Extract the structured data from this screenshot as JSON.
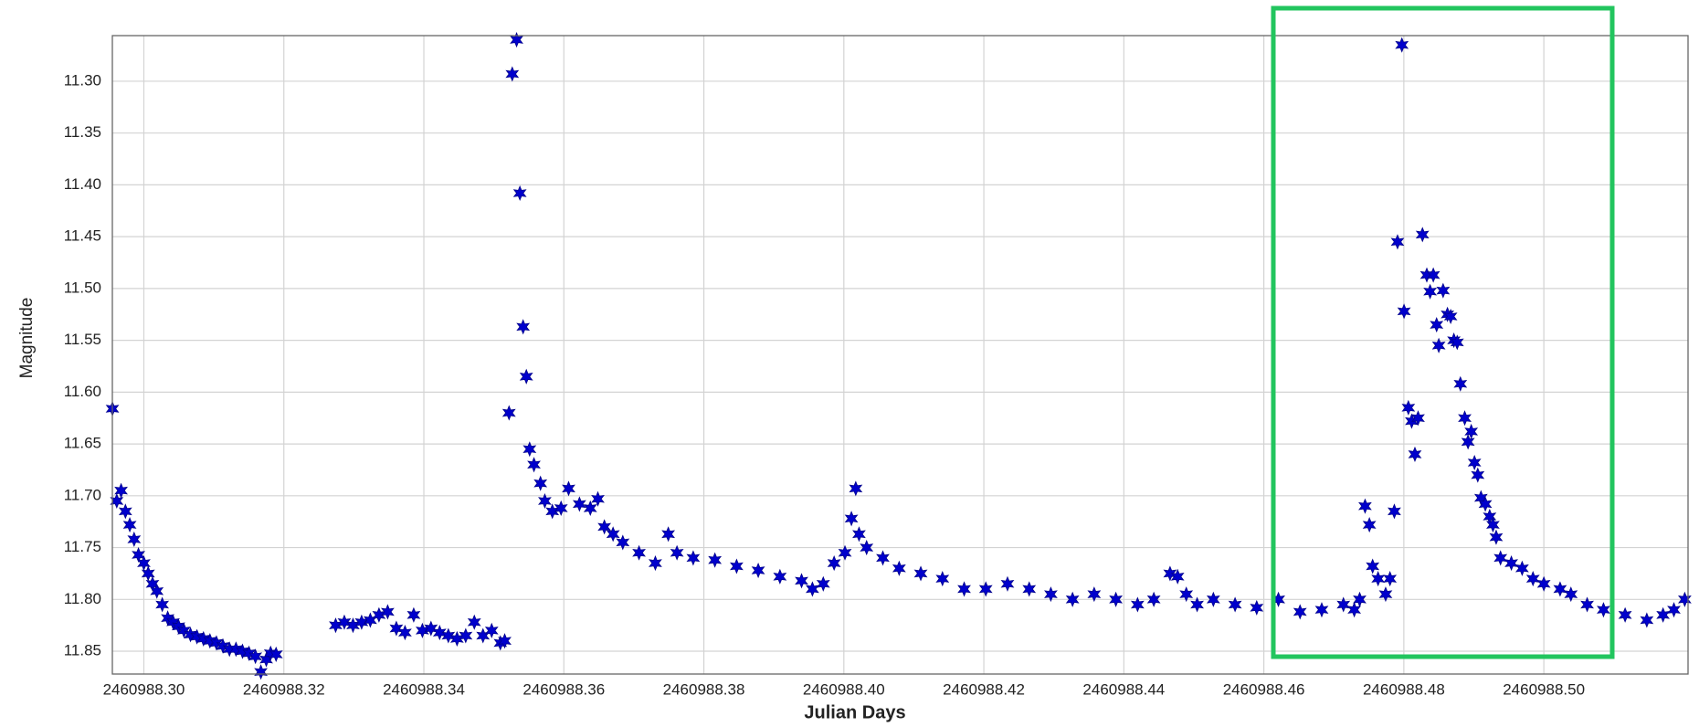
{
  "chart_data": {
    "type": "scatter",
    "x_label": "Julian Days",
    "y_label": "Magnitude",
    "color": "#0000cd",
    "marker": "star",
    "grid": true,
    "xlim": [
      2460988.2955,
      2460988.5206
    ],
    "ylim": [
      11.872,
      11.256
    ],
    "xticks": [
      {
        "value": 2460988.3,
        "label": "2460988.30"
      },
      {
        "value": 2460988.32,
        "label": "2460988.32"
      },
      {
        "value": 2460988.34,
        "label": "2460988.34"
      },
      {
        "value": 2460988.36,
        "label": "2460988.36"
      },
      {
        "value": 2460988.38,
        "label": "2460988.38"
      },
      {
        "value": 2460988.4,
        "label": "2460988.40"
      },
      {
        "value": 2460988.42,
        "label": "2460988.42"
      },
      {
        "value": 2460988.44,
        "label": "2460988.44"
      },
      {
        "value": 2460988.46,
        "label": "2460988.46"
      },
      {
        "value": 2460988.48,
        "label": "2460988.48"
      },
      {
        "value": 2460988.5,
        "label": "2460988.50"
      }
    ],
    "yticks": [
      {
        "value": 11.3,
        "label": "11.30"
      },
      11.35,
      {
        "value": 11.4,
        "label": "11.40"
      },
      11.45,
      {
        "value": 11.5,
        "label": "11.50"
      },
      11.55,
      {
        "value": 11.6,
        "label": "11.60"
      },
      11.65,
      {
        "value": 11.7,
        "label": "11.70"
      },
      11.75,
      {
        "value": 11.8,
        "label": "11.80"
      },
      11.85
    ],
    "x": [
      2460988.29551,
      2460988.29613,
      2460988.29675,
      2460988.29737,
      2460988.29799,
      2460988.29861,
      2460988.29923,
      2460988.3,
      2460988.30062,
      2460988.30124,
      2460988.30186,
      2460988.30263,
      2460988.30341,
      2460988.30418,
      2460988.30495,
      2460988.30573,
      2460988.30666,
      2460988.30759,
      2460988.30852,
      2460988.30944,
      2460988.31037,
      2460988.3113,
      2460988.31223,
      2460988.31316,
      2460988.31409,
      2460988.31502,
      2460988.31594,
      2460988.31672,
      2460988.31749,
      2460988.31811,
      2460988.31889,
      2460988.3274,
      2460988.32864,
      2460988.32988,
      2460988.33111,
      2460988.33235,
      2460988.33359,
      2460988.33483,
      2460988.33607,
      2460988.33731,
      2460988.33855,
      2460988.33979,
      2460988.34102,
      2460988.34226,
      2460988.3435,
      2460988.34474,
      2460988.34598,
      2460988.34721,
      2460988.34845,
      2460988.34969,
      2460988.35093,
      2460988.35155,
      2460988.35217,
      2460988.35263,
      2460988.35325,
      2460988.35372,
      2460988.35418,
      2460988.35464,
      2460988.35511,
      2460988.35573,
      2460988.35666,
      2460988.35728,
      2460988.35836,
      2460988.3596,
      2460988.36068,
      2460988.36223,
      2460988.36378,
      2460988.36486,
      2460988.36579,
      2460988.36703,
      2460988.36842,
      2460988.37074,
      2460988.37307,
      2460988.37492,
      2460988.37616,
      2460988.37848,
      2460988.38158,
      2460988.38468,
      2460988.38777,
      2460988.39087,
      2460988.39396,
      2460988.39551,
      2460988.39706,
      2460988.39861,
      2460988.40016,
      2460988.40108,
      2460988.4017,
      2460988.40217,
      2460988.40325,
      2460988.40557,
      2460988.4079,
      2460988.41099,
      2460988.41409,
      2460988.41719,
      2460988.42028,
      2460988.42338,
      2460988.42648,
      2460988.42957,
      2460988.43267,
      2460988.43576,
      2460988.43886,
      2460988.44196,
      2460988.44428,
      2460988.4466,
      2460988.44768,
      2460988.44892,
      2460988.45047,
      2460988.45279,
      2460988.45589,
      2460988.45898,
      2460988.46208,
      2460988.46517,
      2460988.46827,
      2460988.47137,
      2460988.47292,
      2460988.47369,
      2460988.47446,
      2460988.47508,
      2460988.47554,
      2460988.47632,
      2460988.4774,
      2460988.47802,
      2460988.47864,
      2460988.4791,
      2460988.47972,
      2460988.48003,
      2460988.48065,
      2460988.48112,
      2460988.48158,
      2460988.48204,
      2460988.48266,
      2460988.48328,
      2460988.48375,
      2460988.48421,
      2460988.48468,
      2460988.48499,
      2460988.48561,
      2460988.48623,
      2460988.48669,
      2460988.48715,
      2460988.48762,
      2460988.48808,
      2460988.4887,
      2460988.48917,
      2460988.48963,
      2460988.49009,
      2460988.49056,
      2460988.49102,
      2460988.49164,
      2460988.49226,
      2460988.49273,
      2460988.49319,
      2460988.49381,
      2460988.49536,
      2460988.4969,
      2460988.49845,
      2460988.5,
      2460988.50232,
      2460988.50387,
      2460988.50619,
      2460988.50852,
      2460988.51161,
      2460988.51471,
      2460988.51703,
      2460988.51858,
      2460988.52013
    ],
    "values": [
      11.616,
      11.705,
      11.695,
      11.715,
      11.728,
      11.742,
      11.757,
      11.765,
      11.775,
      11.785,
      11.792,
      11.805,
      11.818,
      11.822,
      11.826,
      11.83,
      11.834,
      11.836,
      11.838,
      11.84,
      11.842,
      11.845,
      11.848,
      11.848,
      11.85,
      11.852,
      11.855,
      11.87,
      11.858,
      11.852,
      11.853,
      11.825,
      11.822,
      11.825,
      11.822,
      11.82,
      11.815,
      11.812,
      11.828,
      11.832,
      11.815,
      11.83,
      11.828,
      11.832,
      11.835,
      11.838,
      11.835,
      11.822,
      11.835,
      11.83,
      11.842,
      11.84,
      11.62,
      11.293,
      11.26,
      11.408,
      11.537,
      11.585,
      11.655,
      11.67,
      11.688,
      11.705,
      11.715,
      11.712,
      11.693,
      11.708,
      11.712,
      11.703,
      11.73,
      11.737,
      11.745,
      11.755,
      11.765,
      11.737,
      11.755,
      11.76,
      11.762,
      11.768,
      11.772,
      11.778,
      11.782,
      11.79,
      11.785,
      11.765,
      11.755,
      11.722,
      11.693,
      11.737,
      11.75,
      11.76,
      11.77,
      11.775,
      11.78,
      11.79,
      11.79,
      11.785,
      11.79,
      11.795,
      11.8,
      11.795,
      11.8,
      11.805,
      11.8,
      11.775,
      11.778,
      11.795,
      11.805,
      11.8,
      11.805,
      11.808,
      11.8,
      11.812,
      11.81,
      11.805,
      11.81,
      11.8,
      11.71,
      11.728,
      11.768,
      11.78,
      11.795,
      11.78,
      11.715,
      11.455,
      11.265,
      11.522,
      11.615,
      11.628,
      11.66,
      11.625,
      11.448,
      11.487,
      11.503,
      11.487,
      11.535,
      11.555,
      11.502,
      11.525,
      11.527,
      11.55,
      11.552,
      11.592,
      11.625,
      11.648,
      11.638,
      11.668,
      11.68,
      11.702,
      11.708,
      11.72,
      11.728,
      11.74,
      11.76,
      11.765,
      11.77,
      11.78,
      11.785,
      11.79,
      11.795,
      11.805,
      11.81,
      11.815,
      11.82,
      11.815,
      11.81,
      11.8
    ]
  }
}
